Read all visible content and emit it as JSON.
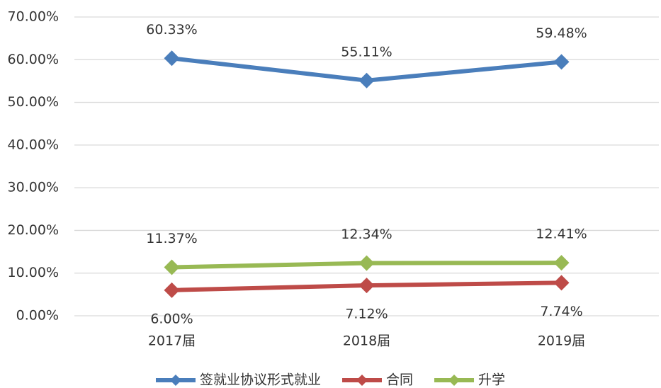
{
  "chart_data": {
    "type": "line",
    "categories": [
      "2017届",
      "2018届",
      "2019届"
    ],
    "series": [
      {
        "name": "签就业协议形式就业",
        "color": "#4a7ebb",
        "values": [
          60.33,
          55.11,
          59.48
        ],
        "value_labels": [
          "60.33%",
          "55.11%",
          "59.48%"
        ],
        "label_position": "above"
      },
      {
        "name": "合同",
        "color": "#be4b48",
        "values": [
          6.0,
          7.12,
          7.74
        ],
        "value_labels": [
          "6.00%",
          "7.12%",
          "7.74%"
        ],
        "label_position": "below"
      },
      {
        "name": "升学",
        "color": "#98b954",
        "values": [
          11.37,
          12.34,
          12.41
        ],
        "value_labels": [
          "11.37%",
          "12.34%",
          "12.41%"
        ],
        "label_position": "above"
      }
    ],
    "ylim": [
      0,
      70
    ],
    "yticks": [
      {
        "value": 0,
        "label": "0.00%"
      },
      {
        "value": 10,
        "label": "10.00%"
      },
      {
        "value": 20,
        "label": "20.00%"
      },
      {
        "value": 30,
        "label": "30.00%"
      },
      {
        "value": 40,
        "label": "40.00%"
      },
      {
        "value": 50,
        "label": "50.00%"
      },
      {
        "value": 60,
        "label": "60.00%"
      },
      {
        "value": 70,
        "label": "70.00%"
      }
    ],
    "grid": true,
    "legend": "bottom"
  }
}
